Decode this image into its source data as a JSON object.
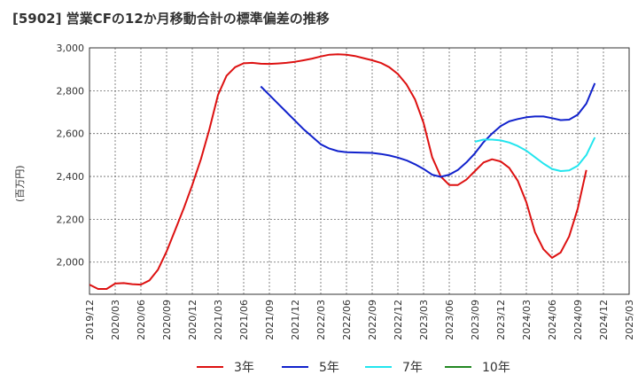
{
  "chart_data": {
    "type": "line",
    "title": "[5902]  営業CFの12か月移動合計の標準偏差の推移",
    "ylabel": "(百万円)",
    "xlabel": "",
    "ylim": [
      1850,
      3000
    ],
    "yticks": [
      2000,
      2200,
      2400,
      2600,
      2800,
      3000
    ],
    "ytick_labels": [
      "2,000",
      "2,200",
      "2,400",
      "2,600",
      "2,800",
      "3,000"
    ],
    "x_start": "2019-12",
    "x_end": "2025-03",
    "xtick_labels": [
      "2019/12",
      "2020/03",
      "2020/06",
      "2020/09",
      "2020/12",
      "2021/03",
      "2021/06",
      "2021/09",
      "2021/12",
      "2022/03",
      "2022/06",
      "2022/09",
      "2022/12",
      "2023/03",
      "2023/06",
      "2023/09",
      "2023/12",
      "2024/03",
      "2024/06",
      "2024/09",
      "2024/12",
      "2025/03"
    ],
    "grid": true,
    "legend_position": "bottom",
    "series": [
      {
        "name": "3年",
        "color": "#dd1111",
        "start": "2019-12",
        "values": [
          1895,
          1875,
          1875,
          1900,
          1902,
          1897,
          1895,
          1915,
          1965,
          2050,
          2150,
          2250,
          2360,
          2480,
          2620,
          2780,
          2870,
          2910,
          2928,
          2930,
          2926,
          2925,
          2927,
          2930,
          2935,
          2942,
          2950,
          2960,
          2968,
          2970,
          2968,
          2962,
          2952,
          2942,
          2930,
          2910,
          2878,
          2830,
          2760,
          2650,
          2490,
          2400,
          2360,
          2360,
          2385,
          2425,
          2465,
          2480,
          2470,
          2440,
          2380,
          2280,
          2140,
          2060,
          2020,
          2045,
          2120,
          2250,
          2430
        ]
      },
      {
        "name": "5年",
        "color": "#1122cc",
        "start": "2021-08",
        "values": [
          2820,
          2780,
          2740,
          2700,
          2660,
          2620,
          2585,
          2550,
          2530,
          2518,
          2513,
          2512,
          2511,
          2510,
          2505,
          2498,
          2488,
          2475,
          2457,
          2435,
          2408,
          2398,
          2408,
          2430,
          2465,
          2508,
          2560,
          2600,
          2635,
          2657,
          2668,
          2676,
          2680,
          2680,
          2672,
          2663,
          2665,
          2688,
          2740,
          2835
        ]
      },
      {
        "name": "7年",
        "color": "#22e5ee",
        "start": "2023-09",
        "values": [
          2562,
          2572,
          2572,
          2568,
          2558,
          2542,
          2520,
          2490,
          2460,
          2435,
          2425,
          2428,
          2450,
          2500,
          2582
        ]
      },
      {
        "name": "10年",
        "color": "#228822",
        "start": "2019-12",
        "values": []
      }
    ]
  }
}
